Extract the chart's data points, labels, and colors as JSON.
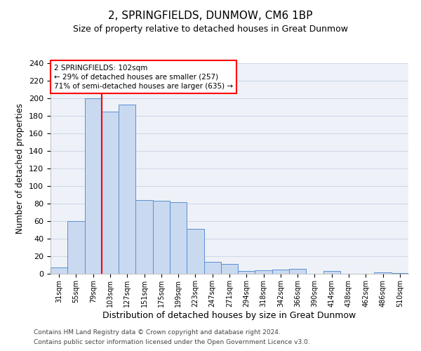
{
  "title": "2, SPRINGFIELDS, DUNMOW, CM6 1BP",
  "subtitle": "Size of property relative to detached houses in Great Dunmow",
  "xlabel": "Distribution of detached houses by size in Great Dunmow",
  "ylabel": "Number of detached properties",
  "bin_labels": [
    "31sqm",
    "55sqm",
    "79sqm",
    "103sqm",
    "127sqm",
    "151sqm",
    "175sqm",
    "199sqm",
    "223sqm",
    "247sqm",
    "271sqm",
    "294sqm",
    "318sqm",
    "342sqm",
    "366sqm",
    "390sqm",
    "414sqm",
    "438sqm",
    "462sqm",
    "486sqm",
    "510sqm"
  ],
  "bar_values": [
    7,
    60,
    200,
    185,
    193,
    84,
    83,
    82,
    51,
    14,
    11,
    3,
    4,
    5,
    6,
    0,
    3,
    0,
    0,
    2,
    1
  ],
  "bar_color": "#c9d9f0",
  "bar_edgecolor": "#5b8fcf",
  "annotation_label": "2 SPRINGFIELDS: 102sqm",
  "annotation_line1": "← 29% of detached houses are smaller (257)",
  "annotation_line2": "71% of semi-detached houses are larger (635) →",
  "red_line_x": 2.5,
  "ylim": [
    0,
    240
  ],
  "yticks": [
    0,
    20,
    40,
    60,
    80,
    100,
    120,
    140,
    160,
    180,
    200,
    220,
    240
  ],
  "grid_color": "#d0d8e8",
  "bg_color": "#eef2f8",
  "footnote1": "Contains HM Land Registry data © Crown copyright and database right 2024.",
  "footnote2": "Contains public sector information licensed under the Open Government Licence v3.0."
}
